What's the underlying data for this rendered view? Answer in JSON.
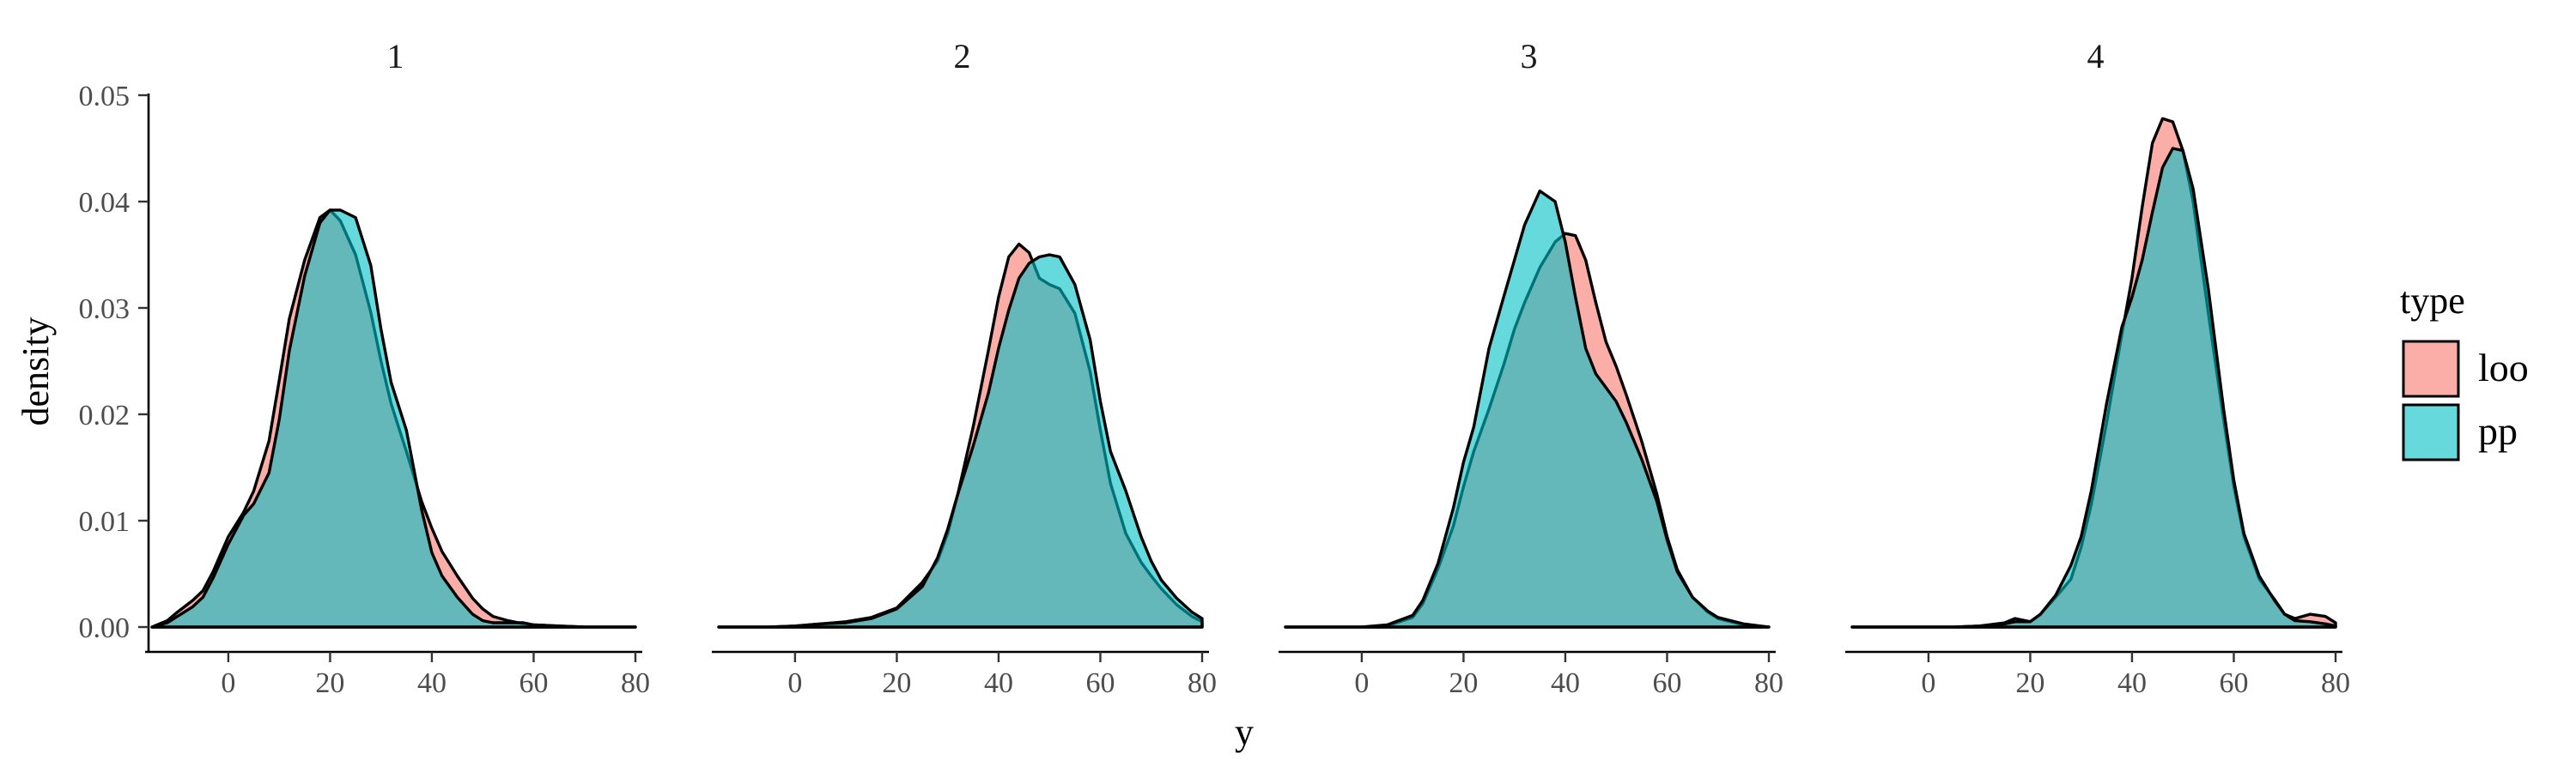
{
  "chart_data": {
    "type": "area",
    "facet_variable": "",
    "xlabel": "y",
    "ylabel": "density",
    "xlim": [
      -15,
      80
    ],
    "ylim": [
      0,
      0.05
    ],
    "x_ticks": [
      0,
      20,
      40,
      60,
      80
    ],
    "y_ticks": [
      0.0,
      0.01,
      0.02,
      0.03,
      0.04,
      0.05
    ],
    "y_tick_labels": [
      "0.00",
      "0.01",
      "0.02",
      "0.03",
      "0.04",
      "0.05"
    ],
    "legend": {
      "title": "type",
      "position": "right",
      "entries": [
        {
          "label": "loo",
          "color": "#F8766D"
        },
        {
          "label": "pp",
          "color": "#00BFC4"
        }
      ]
    },
    "panels": [
      {
        "label": "1",
        "series": [
          {
            "name": "loo",
            "x": [
              -15,
              -12,
              -10,
              -7,
              -5,
              -3,
              0,
              3,
              5,
              8,
              10,
              12,
              15,
              18,
              20,
              22,
              25,
              28,
              30,
              32,
              35,
              38,
              40,
              42,
              45,
              48,
              50,
              52,
              55,
              58,
              60,
              65,
              70,
              75,
              80
            ],
            "y": [
              0.0,
              0.0006,
              0.0014,
              0.0025,
              0.0034,
              0.0052,
              0.0085,
              0.0108,
              0.0128,
              0.0175,
              0.0232,
              0.029,
              0.0345,
              0.0385,
              0.0392,
              0.0382,
              0.035,
              0.0296,
              0.025,
              0.021,
              0.0165,
              0.0118,
              0.0093,
              0.0071,
              0.0048,
              0.0027,
              0.0017,
              0.001,
              0.0006,
              0.0003,
              0.0002,
              0.0001,
              0.0,
              0.0,
              0.0
            ]
          },
          {
            "name": "pp",
            "x": [
              -15,
              -12,
              -10,
              -7,
              -5,
              -3,
              0,
              3,
              5,
              8,
              10,
              12,
              15,
              18,
              20,
              22,
              25,
              28,
              30,
              32,
              35,
              38,
              40,
              42,
              45,
              48,
              50,
              52,
              55,
              58,
              60,
              65,
              70,
              75,
              80
            ],
            "y": [
              0.0,
              0.0004,
              0.001,
              0.0019,
              0.0028,
              0.0046,
              0.0078,
              0.0105,
              0.0116,
              0.0145,
              0.0195,
              0.026,
              0.033,
              0.038,
              0.0392,
              0.0392,
              0.0385,
              0.034,
              0.028,
              0.023,
              0.0185,
              0.011,
              0.007,
              0.0048,
              0.0028,
              0.0012,
              0.0006,
              0.0004,
              0.0004,
              0.0004,
              0.0002,
              0.0001,
              0.0,
              0.0,
              0.0
            ]
          }
        ]
      },
      {
        "label": "2",
        "series": [
          {
            "name": "loo",
            "x": [
              -15,
              -10,
              -5,
              0,
              5,
              10,
              15,
              20,
              25,
              28,
              30,
              32,
              35,
              38,
              40,
              42,
              44,
              46,
              48,
              50,
              52,
              55,
              58,
              60,
              62,
              65,
              68,
              70,
              72,
              75,
              78,
              80
            ],
            "y": [
              0.0,
              0.0,
              0.0,
              0.0001,
              0.0003,
              0.0005,
              0.0009,
              0.0018,
              0.0042,
              0.0062,
              0.0088,
              0.0125,
              0.0188,
              0.026,
              0.031,
              0.0348,
              0.036,
              0.0352,
              0.0328,
              0.0322,
              0.0318,
              0.0295,
              0.024,
              0.0185,
              0.0135,
              0.0088,
              0.0061,
              0.0048,
              0.0036,
              0.0021,
              0.001,
              0.0005
            ]
          },
          {
            "name": "pp",
            "x": [
              -15,
              -10,
              -5,
              0,
              5,
              10,
              15,
              20,
              25,
              28,
              30,
              32,
              35,
              38,
              40,
              42,
              44,
              46,
              48,
              50,
              52,
              55,
              58,
              60,
              62,
              65,
              68,
              70,
              72,
              75,
              78,
              80
            ],
            "y": [
              0.0,
              0.0,
              0.0,
              0.0001,
              0.0003,
              0.0004,
              0.0008,
              0.0017,
              0.0038,
              0.0065,
              0.0092,
              0.0125,
              0.017,
              0.022,
              0.0262,
              0.0298,
              0.0328,
              0.0342,
              0.0348,
              0.035,
              0.0348,
              0.0322,
              0.027,
              0.0212,
              0.0165,
              0.0128,
              0.0085,
              0.0062,
              0.0044,
              0.0027,
              0.0014,
              0.0008
            ]
          }
        ]
      },
      {
        "label": "3",
        "series": [
          {
            "name": "loo",
            "x": [
              -15,
              -10,
              -5,
              0,
              5,
              10,
              12,
              15,
              18,
              20,
              22,
              25,
              28,
              30,
              32,
              35,
              38,
              40,
              42,
              44,
              46,
              48,
              50,
              52,
              55,
              58,
              60,
              62,
              65,
              68,
              70,
              75,
              80
            ],
            "y": [
              0.0,
              0.0,
              0.0,
              0.0,
              0.0001,
              0.0009,
              0.0022,
              0.0055,
              0.0095,
              0.0132,
              0.0165,
              0.0205,
              0.0248,
              0.028,
              0.0305,
              0.0338,
              0.0362,
              0.037,
              0.0368,
              0.0345,
              0.0305,
              0.0268,
              0.0245,
              0.0218,
              0.0175,
              0.0125,
              0.0085,
              0.0054,
              0.0028,
              0.0014,
              0.0008,
              0.0002,
              0.0
            ]
          },
          {
            "name": "pp",
            "x": [
              -15,
              -10,
              -5,
              0,
              5,
              10,
              12,
              15,
              18,
              20,
              22,
              25,
              28,
              30,
              32,
              35,
              38,
              40,
              42,
              44,
              46,
              48,
              50,
              52,
              55,
              58,
              60,
              62,
              65,
              68,
              70,
              75,
              80
            ],
            "y": [
              0.0,
              0.0,
              0.0,
              0.0,
              0.0002,
              0.0011,
              0.0025,
              0.006,
              0.0112,
              0.0155,
              0.0188,
              0.0262,
              0.0312,
              0.0345,
              0.0378,
              0.041,
              0.04,
              0.0362,
              0.031,
              0.0262,
              0.0238,
              0.0225,
              0.0212,
              0.0192,
              0.0158,
              0.0118,
              0.0082,
              0.0052,
              0.0028,
              0.0015,
              0.0009,
              0.0003,
              0.0
            ]
          }
        ]
      },
      {
        "label": "4",
        "series": [
          {
            "name": "loo",
            "x": [
              -15,
              -10,
              -5,
              0,
              5,
              10,
              15,
              17,
              20,
              22,
              25,
              28,
              30,
              32,
              35,
              38,
              40,
              42,
              44,
              46,
              48,
              50,
              52,
              55,
              58,
              60,
              62,
              65,
              68,
              70,
              72,
              75,
              78,
              80
            ],
            "y": [
              0.0,
              0.0,
              0.0,
              0.0,
              0.0,
              0.0001,
              0.0004,
              0.0008,
              0.0005,
              0.0012,
              0.0028,
              0.0045,
              0.0075,
              0.0115,
              0.0192,
              0.0275,
              0.0328,
              0.0395,
              0.0455,
              0.0478,
              0.0475,
              0.0448,
              0.04,
              0.0295,
              0.0195,
              0.0132,
              0.0085,
              0.0045,
              0.0026,
              0.0012,
              0.0008,
              0.0012,
              0.001,
              0.0004
            ]
          },
          {
            "name": "pp",
            "x": [
              -15,
              -10,
              -5,
              0,
              5,
              10,
              15,
              17,
              20,
              22,
              25,
              28,
              30,
              32,
              35,
              38,
              40,
              42,
              44,
              46,
              48,
              50,
              52,
              55,
              58,
              60,
              62,
              65,
              68,
              70,
              72,
              75,
              78,
              80
            ],
            "y": [
              0.0,
              0.0,
              0.0,
              0.0,
              0.0,
              0.0001,
              0.0003,
              0.0005,
              0.0005,
              0.0012,
              0.003,
              0.0058,
              0.0085,
              0.0128,
              0.021,
              0.0282,
              0.031,
              0.0345,
              0.039,
              0.0432,
              0.045,
              0.0448,
              0.0412,
              0.0318,
              0.0205,
              0.0138,
              0.0088,
              0.0048,
              0.0025,
              0.0012,
              0.0006,
              0.0005,
              0.0003,
              0.0001
            ]
          }
        ]
      }
    ]
  }
}
